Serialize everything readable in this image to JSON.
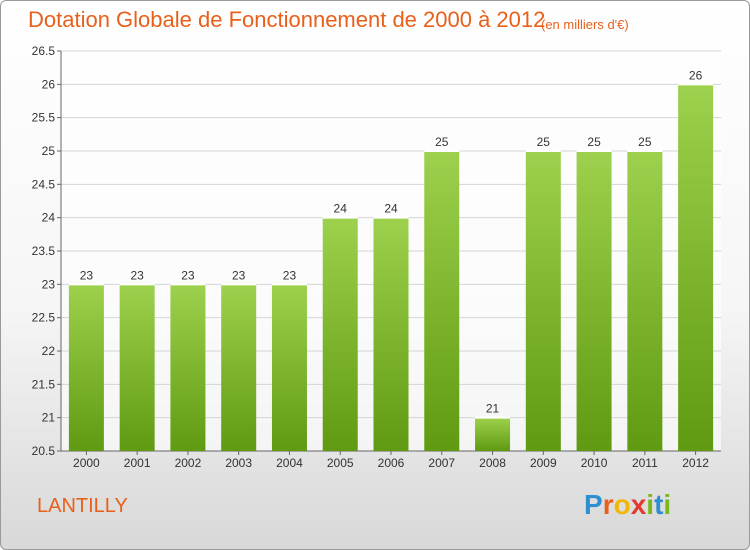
{
  "header": {
    "title": "Dotation Globale de Fonctionnement de 2000 à 2012",
    "subtitle": "(en milliers d'€)"
  },
  "footer": {
    "commune": "LANTILLY",
    "logo": {
      "letters": [
        "P",
        "r",
        "o",
        "x",
        "i",
        "t",
        "i"
      ],
      "colors": [
        "#2e8fd0",
        "#e8601a",
        "#f2b705",
        "#e23a2e",
        "#7cb81c",
        "#2e8fd0",
        "#7cb81c"
      ]
    }
  },
  "colors": {
    "bar_light": "#9ed14d",
    "bar_dark": "#5f9a12",
    "grid": "#d5d5d5",
    "text_accent": "#e8601a"
  },
  "chart_data": {
    "type": "bar",
    "categories": [
      "2000",
      "2001",
      "2002",
      "2003",
      "2004",
      "2005",
      "2006",
      "2007",
      "2008",
      "2009",
      "2010",
      "2011",
      "2012"
    ],
    "values": [
      23,
      23,
      23,
      23,
      23,
      24,
      24,
      25,
      21,
      25,
      25,
      25,
      26
    ],
    "labels": [
      "23",
      "23",
      "23",
      "23",
      "23",
      "24",
      "24",
      "25",
      "21",
      "25",
      "25",
      "25",
      "26"
    ],
    "yticks": [
      "20.5",
      "21",
      "21.5",
      "22",
      "22.5",
      "23",
      "23.5",
      "24",
      "24.5",
      "25",
      "25.5",
      "26",
      "26.5"
    ],
    "ylim": [
      20.5,
      26.5
    ],
    "title": "Dotation Globale de Fonctionnement de 2000 à 2012",
    "xlabel": "",
    "ylabel": "",
    "grid": true
  }
}
